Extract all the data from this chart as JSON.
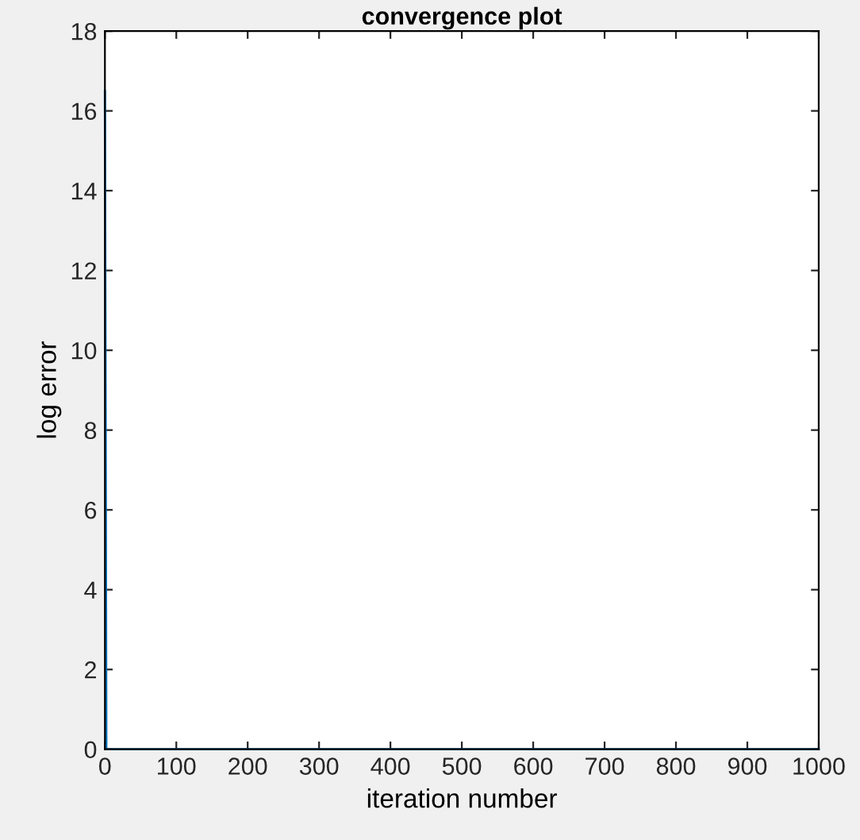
{
  "chart_data": {
    "type": "line",
    "title": "convergence plot",
    "xlabel": "iteration number",
    "ylabel": "log error",
    "x": [
      0,
      2,
      1000
    ],
    "series": [
      {
        "color": "#0072bd",
        "values": [
          16.5,
          0,
          0
        ]
      }
    ],
    "xlim": [
      0,
      1000
    ],
    "xticks": [
      0,
      100,
      200,
      300,
      400,
      500,
      600,
      700,
      800,
      900,
      1000
    ],
    "ylim": [
      0,
      18
    ],
    "yticks": [
      0,
      2,
      4,
      6,
      8,
      10,
      12,
      14,
      16,
      18
    ],
    "grid": false,
    "legend": false,
    "marker": "none",
    "line_style": "solid"
  }
}
